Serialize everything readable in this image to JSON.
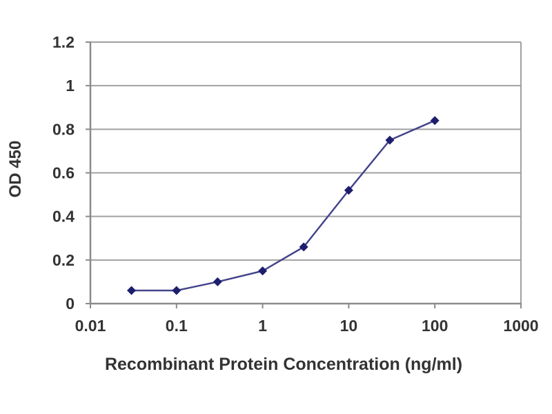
{
  "chart": {
    "colors": {
      "background": "#ffffff",
      "gridline": "#a0a0a0",
      "axis_line": "#8a8a8a",
      "series_line": "#44448c",
      "marker": "#1e1e6e",
      "text": "#333333"
    }
  },
  "chart_data": {
    "type": "line",
    "x": [
      0.03,
      0.1,
      0.3,
      1,
      3,
      10,
      30,
      100
    ],
    "y": [
      0.06,
      0.06,
      0.1,
      0.15,
      0.26,
      0.52,
      0.75,
      0.84
    ],
    "x_scale": "log",
    "xlim": [
      0.01,
      1000
    ],
    "ylim": [
      0,
      1.2
    ],
    "x_ticks": [
      "0.01",
      "0.1",
      "1",
      "10",
      "100",
      "1000"
    ],
    "x_tick_values": [
      0.01,
      0.1,
      1,
      10,
      100,
      1000
    ],
    "y_ticks": [
      "0",
      "0.2",
      "0.4",
      "0.6",
      "0.8",
      "1",
      "1.2"
    ],
    "y_tick_values": [
      0,
      0.2,
      0.4,
      0.6,
      0.8,
      1,
      1.2
    ],
    "xlabel": "Recombinant Protein Concentration (ng/ml)",
    "ylabel": "OD 450",
    "title": "",
    "grid": "horizontal",
    "marker": "diamond",
    "legend": "none"
  }
}
